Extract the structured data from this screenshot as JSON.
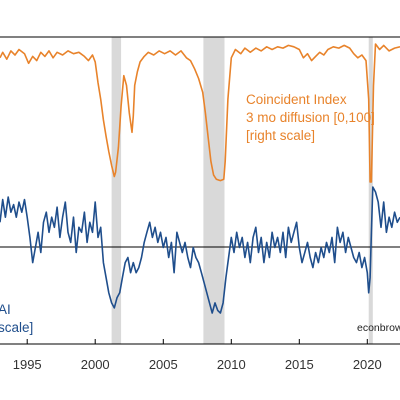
{
  "chart_data": {
    "type": "line",
    "x_ticks": [
      "1995",
      "2000",
      "2005",
      "2010",
      "2015",
      "2020"
    ],
    "x_range": [
      1993.0,
      2022.4
    ],
    "recessions": [
      [
        2001.2,
        2001.9
      ],
      [
        2007.95,
        2009.5
      ],
      [
        2020.1,
        2020.4
      ]
    ],
    "annotations": {
      "orange": [
        "Coincident Index",
        "3 mo diffusion [0,100]",
        "[right scale]"
      ],
      "blue": [
        "AI",
        "scale]"
      ],
      "credit": "econbrow"
    },
    "colors": {
      "diffusion": "#e8832b",
      "cfnai": "#1f4e8c",
      "recession": "#d9d9d9",
      "zero_line": "#000000"
    },
    "series": [
      {
        "key": "diffusion",
        "ylim": [
          0,
          100
        ],
        "points": [
          [
            1993.0,
            90
          ],
          [
            1993.2,
            94
          ],
          [
            1993.5,
            89
          ],
          [
            1993.8,
            95
          ],
          [
            1994.1,
            92
          ],
          [
            1994.4,
            96
          ],
          [
            1994.8,
            93
          ],
          [
            1995.1,
            86
          ],
          [
            1995.4,
            91
          ],
          [
            1995.7,
            88
          ],
          [
            1996.0,
            94
          ],
          [
            1996.3,
            91
          ],
          [
            1996.6,
            95
          ],
          [
            1996.9,
            90
          ],
          [
            1997.2,
            94
          ],
          [
            1997.6,
            92
          ],
          [
            1998.0,
            95
          ],
          [
            1998.4,
            93
          ],
          [
            1998.8,
            94
          ],
          [
            1999.2,
            91
          ],
          [
            1999.5,
            88
          ],
          [
            1999.8,
            92
          ],
          [
            2000.0,
            87
          ],
          [
            2000.2,
            72
          ],
          [
            2000.4,
            60
          ],
          [
            2000.6,
            45
          ],
          [
            2000.8,
            33
          ],
          [
            2001.0,
            22
          ],
          [
            2001.2,
            12
          ],
          [
            2001.4,
            4
          ],
          [
            2001.5,
            7
          ],
          [
            2001.7,
            25
          ],
          [
            2001.9,
            55
          ],
          [
            2002.1,
            77
          ],
          [
            2002.3,
            70
          ],
          [
            2002.5,
            50
          ],
          [
            2002.7,
            36
          ],
          [
            2002.8,
            48
          ],
          [
            2002.9,
            70
          ],
          [
            2003.1,
            80
          ],
          [
            2003.3,
            87
          ],
          [
            2003.6,
            91
          ],
          [
            2003.9,
            94
          ],
          [
            2004.3,
            92
          ],
          [
            2004.7,
            95
          ],
          [
            2005.1,
            93
          ],
          [
            2005.5,
            95
          ],
          [
            2005.9,
            92
          ],
          [
            2006.3,
            95
          ],
          [
            2006.7,
            90
          ],
          [
            2007.0,
            88
          ],
          [
            2007.3,
            82
          ],
          [
            2007.6,
            75
          ],
          [
            2007.9,
            65
          ],
          [
            2008.1,
            50
          ],
          [
            2008.3,
            32
          ],
          [
            2008.5,
            15
          ],
          [
            2008.7,
            5
          ],
          [
            2008.9,
            2
          ],
          [
            2009.2,
            1
          ],
          [
            2009.45,
            2
          ],
          [
            2009.55,
            15
          ],
          [
            2009.75,
            60
          ],
          [
            2010.0,
            90
          ],
          [
            2010.3,
            96
          ],
          [
            2010.7,
            93
          ],
          [
            2011.0,
            97
          ],
          [
            2011.4,
            94
          ],
          [
            2011.8,
            97
          ],
          [
            2012.2,
            95
          ],
          [
            2012.6,
            98
          ],
          [
            2013.0,
            96
          ],
          [
            2013.4,
            98
          ],
          [
            2013.8,
            97
          ],
          [
            2014.2,
            99
          ],
          [
            2014.6,
            98
          ],
          [
            2015.0,
            96
          ],
          [
            2015.3,
            90
          ],
          [
            2015.6,
            93
          ],
          [
            2015.9,
            88
          ],
          [
            2016.2,
            91
          ],
          [
            2016.5,
            94
          ],
          [
            2016.8,
            92
          ],
          [
            2017.1,
            96
          ],
          [
            2017.5,
            98
          ],
          [
            2017.9,
            97
          ],
          [
            2018.3,
            99
          ],
          [
            2018.7,
            97
          ],
          [
            2019.0,
            93
          ],
          [
            2019.3,
            90
          ],
          [
            2019.6,
            92
          ],
          [
            2019.9,
            88
          ],
          [
            2020.1,
            60
          ],
          [
            2020.2,
            0
          ],
          [
            2020.3,
            0
          ],
          [
            2020.45,
            70
          ],
          [
            2020.6,
            100
          ],
          [
            2020.9,
            96
          ],
          [
            2021.2,
            99
          ],
          [
            2021.6,
            95
          ],
          [
            2022.0,
            97
          ],
          [
            2022.4,
            98
          ]
        ]
      },
      {
        "key": "cfnai",
        "ylim": [
          -1.4,
          1.2
        ],
        "points": [
          [
            1993.0,
            0.5
          ],
          [
            1993.2,
            0.95
          ],
          [
            1993.4,
            0.6
          ],
          [
            1993.6,
            1.0
          ],
          [
            1993.8,
            0.7
          ],
          [
            1994.0,
            0.85
          ],
          [
            1994.2,
            0.6
          ],
          [
            1994.4,
            0.9
          ],
          [
            1994.6,
            0.7
          ],
          [
            1994.8,
            0.95
          ],
          [
            1995.0,
            0.6
          ],
          [
            1995.2,
            0.2
          ],
          [
            1995.4,
            -0.3
          ],
          [
            1995.6,
            0.0
          ],
          [
            1995.8,
            0.3
          ],
          [
            1996.0,
            -0.1
          ],
          [
            1996.2,
            0.5
          ],
          [
            1996.4,
            0.7
          ],
          [
            1996.6,
            0.3
          ],
          [
            1996.8,
            0.6
          ],
          [
            1997.0,
            0.4
          ],
          [
            1997.2,
            0.8
          ],
          [
            1997.4,
            0.2
          ],
          [
            1997.6,
            0.6
          ],
          [
            1997.8,
            0.9
          ],
          [
            1998.0,
            0.3
          ],
          [
            1998.2,
            0.1
          ],
          [
            1998.4,
            0.6
          ],
          [
            1998.6,
            -0.1
          ],
          [
            1998.8,
            0.4
          ],
          [
            1999.0,
            0.3
          ],
          [
            1999.2,
            0.7
          ],
          [
            1999.4,
            0.1
          ],
          [
            1999.6,
            0.5
          ],
          [
            1999.8,
            0.3
          ],
          [
            2000.0,
            0.9
          ],
          [
            2000.2,
            0.2
          ],
          [
            2000.4,
            0.4
          ],
          [
            2000.6,
            -0.3
          ],
          [
            2000.8,
            -0.6
          ],
          [
            2001.0,
            -0.9
          ],
          [
            2001.2,
            -1.1
          ],
          [
            2001.4,
            -1.2
          ],
          [
            2001.6,
            -1.0
          ],
          [
            2001.8,
            -0.9
          ],
          [
            2002.0,
            -0.6
          ],
          [
            2002.2,
            -0.3
          ],
          [
            2002.4,
            -0.2
          ],
          [
            2002.6,
            -0.5
          ],
          [
            2002.8,
            -0.3
          ],
          [
            2003.0,
            -0.5
          ],
          [
            2003.2,
            -0.4
          ],
          [
            2003.4,
            -0.2
          ],
          [
            2003.6,
            0.1
          ],
          [
            2003.8,
            0.3
          ],
          [
            2004.0,
            0.5
          ],
          [
            2004.2,
            0.2
          ],
          [
            2004.4,
            0.4
          ],
          [
            2004.6,
            0.1
          ],
          [
            2004.8,
            0.3
          ],
          [
            2005.0,
            0.0
          ],
          [
            2005.2,
            0.2
          ],
          [
            2005.4,
            -0.2
          ],
          [
            2005.6,
            0.1
          ],
          [
            2005.8,
            -0.5
          ],
          [
            2006.0,
            0.3
          ],
          [
            2006.2,
            0.1
          ],
          [
            2006.4,
            -0.1
          ],
          [
            2006.6,
            0.1
          ],
          [
            2006.8,
            -0.2
          ],
          [
            2007.0,
            -0.4
          ],
          [
            2007.2,
            0.0
          ],
          [
            2007.4,
            -0.2
          ],
          [
            2007.6,
            -0.3
          ],
          [
            2007.8,
            -0.5
          ],
          [
            2008.0,
            -0.7
          ],
          [
            2008.2,
            -0.9
          ],
          [
            2008.4,
            -1.1
          ],
          [
            2008.6,
            -1.3
          ],
          [
            2008.8,
            -1.1
          ],
          [
            2009.0,
            -1.25
          ],
          [
            2009.2,
            -1.3
          ],
          [
            2009.4,
            -1.1
          ],
          [
            2009.6,
            -0.6
          ],
          [
            2009.8,
            -0.2
          ],
          [
            2010.0,
            0.2
          ],
          [
            2010.2,
            -0.1
          ],
          [
            2010.4,
            0.3
          ],
          [
            2010.6,
            0.0
          ],
          [
            2010.8,
            0.2
          ],
          [
            2011.0,
            -0.2
          ],
          [
            2011.2,
            0.1
          ],
          [
            2011.4,
            -0.3
          ],
          [
            2011.6,
            0.2
          ],
          [
            2011.8,
            0.4
          ],
          [
            2012.0,
            -0.1
          ],
          [
            2012.2,
            0.2
          ],
          [
            2012.4,
            -0.3
          ],
          [
            2012.6,
            0.1
          ],
          [
            2012.8,
            -0.2
          ],
          [
            2013.0,
            0.3
          ],
          [
            2013.2,
            0.0
          ],
          [
            2013.4,
            0.2
          ],
          [
            2013.6,
            -0.1
          ],
          [
            2013.8,
            0.3
          ],
          [
            2014.0,
            -0.2
          ],
          [
            2014.2,
            0.4
          ],
          [
            2014.4,
            0.1
          ],
          [
            2014.6,
            0.3
          ],
          [
            2014.8,
            0.5
          ],
          [
            2015.0,
            0.0
          ],
          [
            2015.2,
            -0.3
          ],
          [
            2015.4,
            -0.1
          ],
          [
            2015.6,
            0.1
          ],
          [
            2015.8,
            -0.2
          ],
          [
            2016.0,
            -0.4
          ],
          [
            2016.2,
            -0.1
          ],
          [
            2016.4,
            -0.3
          ],
          [
            2016.6,
            0.0
          ],
          [
            2016.8,
            -0.2
          ],
          [
            2017.0,
            0.1
          ],
          [
            2017.2,
            -0.1
          ],
          [
            2017.4,
            0.2
          ],
          [
            2017.6,
            -0.3
          ],
          [
            2017.8,
            0.4
          ],
          [
            2018.0,
            0.1
          ],
          [
            2018.2,
            0.3
          ],
          [
            2018.4,
            -0.1
          ],
          [
            2018.6,
            0.2
          ],
          [
            2018.8,
            0.0
          ],
          [
            2019.0,
            -0.2
          ],
          [
            2019.2,
            -0.3
          ],
          [
            2019.4,
            -0.1
          ],
          [
            2019.6,
            -0.4
          ],
          [
            2019.8,
            -0.2
          ],
          [
            2020.0,
            -0.5
          ],
          [
            2020.1,
            -0.9
          ],
          [
            2020.2,
            -0.6
          ],
          [
            2020.3,
            0.3
          ],
          [
            2020.4,
            1.2
          ],
          [
            2020.6,
            1.1
          ],
          [
            2020.8,
            0.9
          ],
          [
            2021.0,
            0.4
          ],
          [
            2021.2,
            0.9
          ],
          [
            2021.4,
            0.3
          ],
          [
            2021.6,
            0.6
          ],
          [
            2021.8,
            0.4
          ],
          [
            2022.0,
            0.7
          ],
          [
            2022.2,
            0.5
          ],
          [
            2022.4,
            0.6
          ]
        ]
      }
    ]
  }
}
